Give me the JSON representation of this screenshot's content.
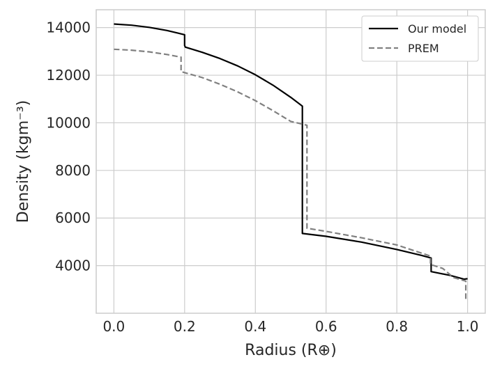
{
  "chart_data": {
    "type": "line",
    "xlabel": "Radius (R⊕)",
    "ylabel": "Density (kgm⁻³)",
    "xlim": [
      -0.05,
      1.05
    ],
    "ylim": [
      2000,
      14750
    ],
    "xticks": [
      0.0,
      0.2,
      0.4,
      0.6,
      0.8,
      1.0
    ],
    "xtick_labels": [
      "0.0",
      "0.2",
      "0.4",
      "0.6",
      "0.8",
      "1.0"
    ],
    "yticks": [
      4000,
      6000,
      8000,
      10000,
      12000,
      14000
    ],
    "ytick_labels": [
      "4000",
      "6000",
      "8000",
      "10000",
      "12000",
      "14000"
    ],
    "grid": true,
    "legend_position": "top-right",
    "series": [
      {
        "name": "Our model",
        "color": "#000000",
        "style": "solid",
        "points": [
          [
            0.0,
            14150
          ],
          [
            0.05,
            14100
          ],
          [
            0.1,
            14010
          ],
          [
            0.15,
            13880
          ],
          [
            0.2,
            13700
          ],
          [
            0.2,
            13250
          ],
          [
            0.202,
            13180
          ],
          [
            0.25,
            12960
          ],
          [
            0.3,
            12700
          ],
          [
            0.35,
            12390
          ],
          [
            0.4,
            12020
          ],
          [
            0.45,
            11580
          ],
          [
            0.5,
            11070
          ],
          [
            0.533,
            10700
          ],
          [
            0.533,
            5350
          ],
          [
            0.6,
            5230
          ],
          [
            0.7,
            4990
          ],
          [
            0.8,
            4680
          ],
          [
            0.87,
            4430
          ],
          [
            0.897,
            4320
          ],
          [
            0.897,
            3750
          ],
          [
            0.95,
            3590
          ],
          [
            0.99,
            3430
          ],
          [
            1.0,
            3450
          ]
        ]
      },
      {
        "name": "PREM",
        "color": "#808080",
        "style": "dashed",
        "points": [
          [
            0.0,
            13090
          ],
          [
            0.05,
            13050
          ],
          [
            0.1,
            12980
          ],
          [
            0.15,
            12870
          ],
          [
            0.19,
            12760
          ],
          [
            0.19,
            12150
          ],
          [
            0.25,
            11900
          ],
          [
            0.3,
            11620
          ],
          [
            0.35,
            11300
          ],
          [
            0.4,
            10930
          ],
          [
            0.45,
            10510
          ],
          [
            0.5,
            10060
          ],
          [
            0.546,
            9900
          ],
          [
            0.546,
            5570
          ],
          [
            0.6,
            5440
          ],
          [
            0.7,
            5170
          ],
          [
            0.8,
            4870
          ],
          [
            0.895,
            4400
          ],
          [
            0.895,
            4050
          ],
          [
            0.93,
            3880
          ],
          [
            0.96,
            3500
          ],
          [
            0.995,
            3350
          ],
          [
            0.995,
            2600
          ]
        ]
      }
    ]
  }
}
